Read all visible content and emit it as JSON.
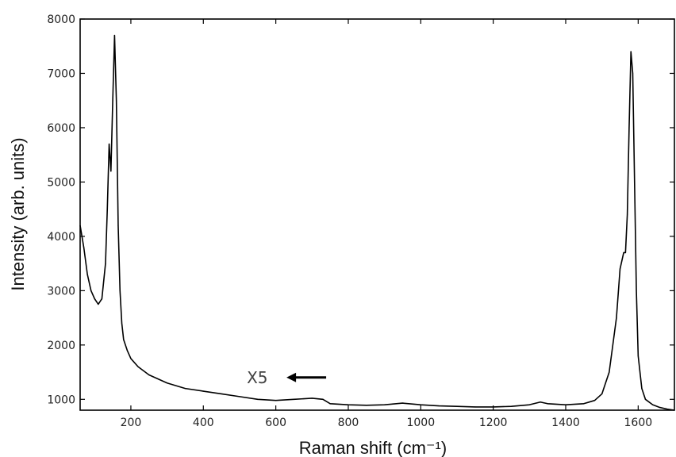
{
  "chart_data": {
    "type": "line",
    "title": "",
    "xlabel": "Raman shift (cm⁻¹)",
    "ylabel": "Intensity (arb. units)",
    "xlim": [
      60,
      1700
    ],
    "ylim": [
      800,
      8000
    ],
    "xticks": [
      "200",
      "400",
      "600",
      "800",
      "1000",
      "1200",
      "1400",
      "1600"
    ],
    "yticks": [
      "1000",
      "2000",
      "3000",
      "4000",
      "5000",
      "6000",
      "7000",
      "8000"
    ],
    "grid": false,
    "line_color": "#000000",
    "series": [
      {
        "x": [
          60,
          70,
          80,
          90,
          100,
          110,
          120,
          130,
          135,
          140,
          145,
          150,
          155,
          160,
          165,
          170,
          175,
          180,
          190,
          200,
          220,
          250,
          300,
          350,
          400,
          450,
          500,
          550,
          600,
          650,
          700,
          730,
          750,
          800,
          850,
          900,
          950,
          1000,
          1050,
          1100,
          1150,
          1200,
          1250,
          1300,
          1330,
          1350,
          1400,
          1450,
          1480,
          1500,
          1520,
          1540,
          1550,
          1560,
          1565,
          1570,
          1575,
          1580,
          1585,
          1590,
          1595,
          1600,
          1610,
          1620,
          1640,
          1660,
          1680,
          1700
        ],
        "y": [
          4200,
          3800,
          3300,
          3000,
          2850,
          2750,
          2850,
          3500,
          4500,
          5700,
          5200,
          6500,
          7700,
          6500,
          4200,
          3000,
          2400,
          2100,
          1900,
          1750,
          1600,
          1450,
          1300,
          1200,
          1150,
          1100,
          1050,
          1000,
          980,
          1000,
          1020,
          1000,
          920,
          900,
          890,
          900,
          930,
          900,
          880,
          870,
          860,
          860,
          870,
          900,
          950,
          920,
          900,
          920,
          980,
          1100,
          1500,
          2500,
          3400,
          3700,
          3700,
          4400,
          6000,
          7400,
          7000,
          5000,
          3000,
          1800,
          1200,
          1000,
          900,
          850,
          820,
          800
        ]
      }
    ],
    "annotations": [
      {
        "text": "X5",
        "arrow": "left",
        "x": 520,
        "y": 1300
      }
    ]
  }
}
